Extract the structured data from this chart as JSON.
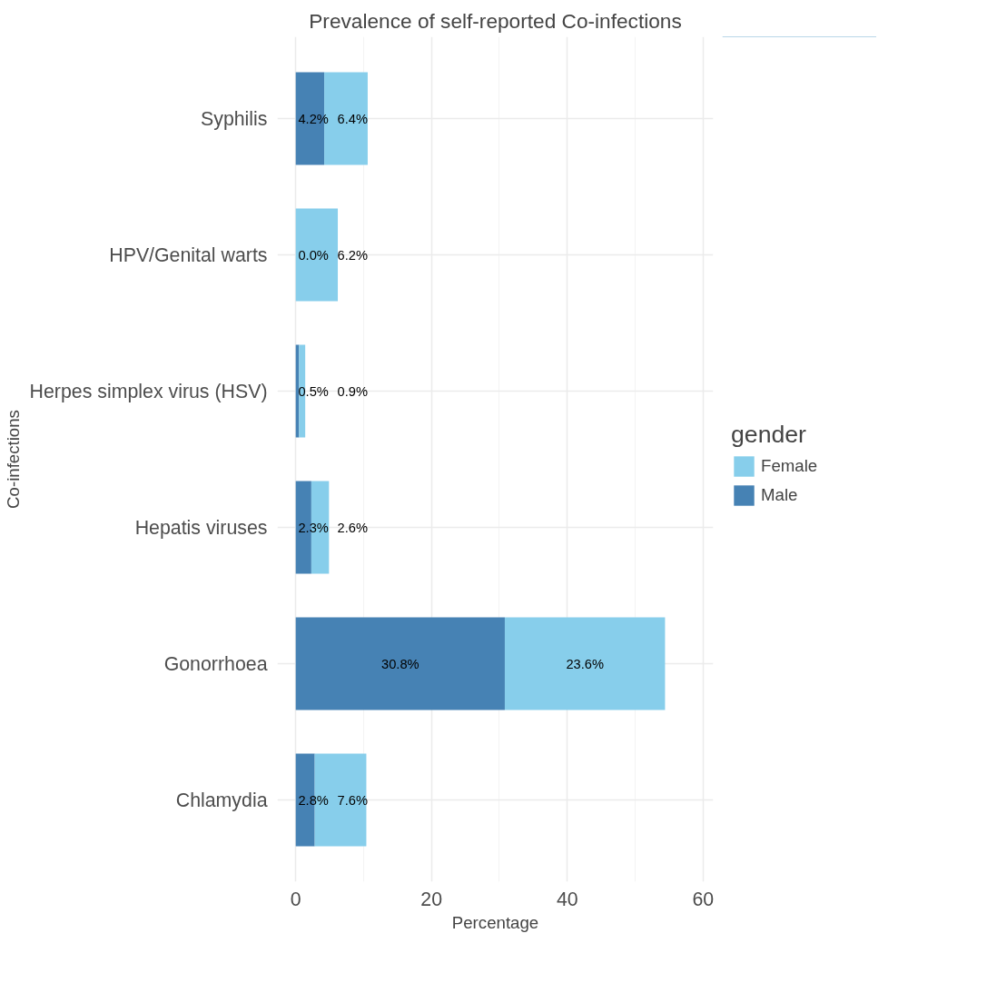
{
  "chart_data": {
    "type": "bar",
    "orientation": "horizontal",
    "stacked": true,
    "title": "Prevalence of self-reported Co-infections",
    "xlabel": "Percentage",
    "ylabel": "Co-infections",
    "legend_title": "gender",
    "legend": "right",
    "grid": true,
    "categories": [
      "Syphilis",
      "HPV/Genital warts",
      "Herpes simplex virus (HSV)",
      "Hepatis viruses",
      "Gonorrhoea",
      "Chlamydia"
    ],
    "series": [
      {
        "name": "Male",
        "color": "#4682b4",
        "values": [
          4.2,
          0.0,
          0.5,
          2.3,
          30.8,
          2.8
        ],
        "value_labels": [
          "4.2%",
          "0.0%",
          "0.5%",
          "2.3%",
          "30.8%",
          "2.8%"
        ]
      },
      {
        "name": "Female",
        "color": "#87ceeb",
        "values": [
          6.4,
          6.2,
          0.9,
          2.6,
          23.6,
          7.6
        ],
        "value_labels": [
          "6.4%",
          "6.2%",
          "0.9%",
          "2.6%",
          "23.6%",
          "7.6%"
        ]
      }
    ],
    "xlim": [
      -2.7,
      61.5
    ],
    "xticks": [
      0,
      20,
      40,
      60
    ]
  }
}
